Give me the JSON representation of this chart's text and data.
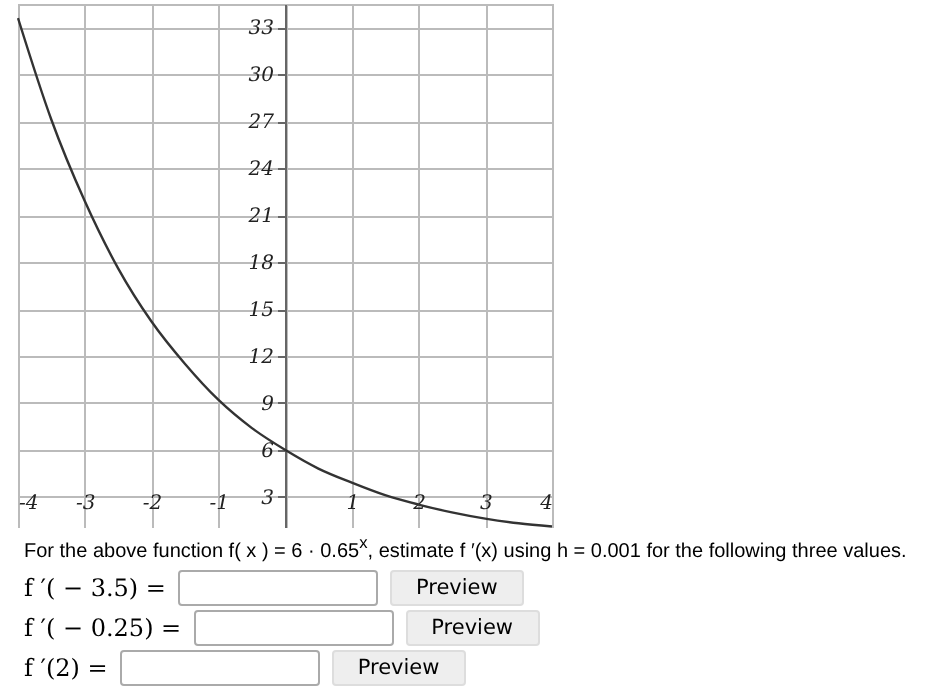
{
  "chart_data": {
    "type": "line",
    "x": [
      -4,
      -3.5,
      -3,
      -2.5,
      -2,
      -1.5,
      -1,
      -0.5,
      0,
      0.5,
      1,
      1.5,
      2,
      2.5,
      3,
      3.5,
      4
    ],
    "series": [
      {
        "color": "#333333",
        "values": [
          33.6,
          27.1,
          21.9,
          17.6,
          14.2,
          11.5,
          9.2,
          7.4,
          6,
          4.8,
          3.9,
          3.1,
          2.5,
          2.0,
          1.6,
          1.3,
          1.1
        ]
      }
    ],
    "xlim": [
      -4,
      4
    ],
    "ylim": [
      1,
      34.5
    ],
    "xticks": [
      -4,
      -3,
      -2,
      -1,
      {
        "value": 0,
        "label": null
      },
      1,
      2,
      3,
      4
    ],
    "yticks": [
      3,
      6,
      9,
      12,
      15,
      18,
      21,
      24,
      27,
      30,
      33
    ],
    "grid": true,
    "marker": "none",
    "line_style": "solid",
    "annotations": [
      "For the above function f( x ) = 6 · 0.65$^{x}$, estimate f ′(x) using h = 0.001 for the following three values.",
      "f ′( − 3.5) =",
      "Preview",
      "f ′( − 0.25) =",
      "Preview",
      "f ′(2) =",
      "Preview"
    ]
  }
}
